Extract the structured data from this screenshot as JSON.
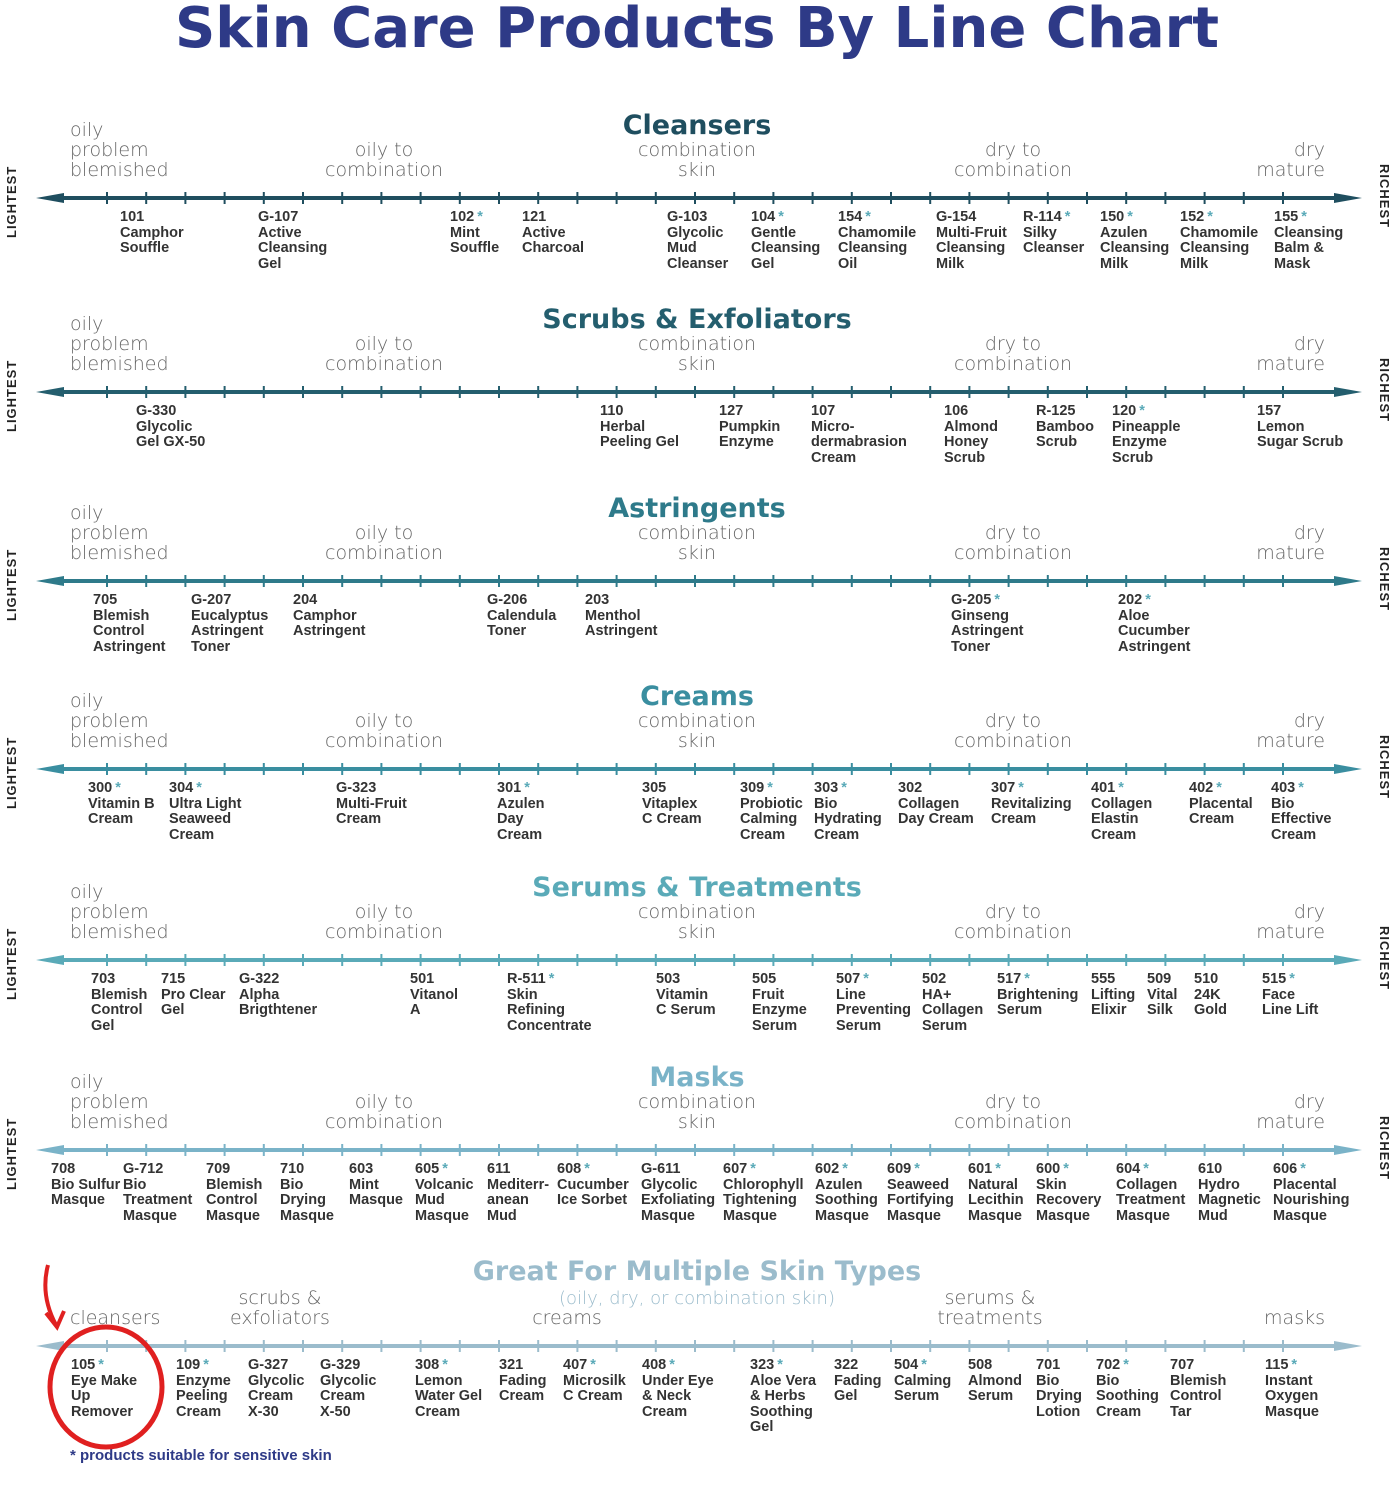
{
  "title": "Skin Care Products By Line Chart",
  "side_left": "LIGHTEST",
  "side_right": "RICHEST",
  "labels": {
    "oily": "oily\nproblem\nblemished",
    "oily_comb": "oily to\ncombination",
    "comb": "combination\nskin",
    "dry_comb": "dry to\ncombination",
    "dry": "dry\nmature"
  },
  "sections": [
    {
      "title": "Cleansers",
      "color": "#1f4e5f",
      "products": [
        {
          "code": "101",
          "star": false,
          "name": "Camphor\nSouffle"
        },
        {
          "code": "G-107",
          "star": false,
          "name": "Active\nCleansing\nGel"
        },
        {
          "code": "102",
          "star": true,
          "name": "Mint\nSouffle"
        },
        {
          "code": "121",
          "star": false,
          "name": "Active\nCharcoal"
        },
        {
          "code": "G-103",
          "star": false,
          "name": "Glycolic\nMud\nCleanser"
        },
        {
          "code": "104",
          "star": true,
          "name": "Gentle\nCleansing\nGel"
        },
        {
          "code": "154",
          "star": true,
          "name": "Chamomile\nCleansing\nOil"
        },
        {
          "code": "G-154",
          "star": false,
          "name": "Multi-Fruit\nCleansing\nMilk"
        },
        {
          "code": "R-114",
          "star": true,
          "name": "Silky\nCleanser"
        },
        {
          "code": "150",
          "star": true,
          "name": "Azulen\nCleansing\nMilk"
        },
        {
          "code": "152",
          "star": true,
          "name": "Chamomile\nCleansing\nMilk"
        },
        {
          "code": "155",
          "star": true,
          "name": "Cleansing\nBalm &\nMask"
        }
      ]
    },
    {
      "title": "Scrubs & Exfoliators",
      "color": "#245e6e",
      "products": [
        {
          "code": "G-330",
          "star": false,
          "name": "Glycolic\nGel GX-50"
        },
        {
          "code": "110",
          "star": false,
          "name": "Herbal\nPeeling Gel"
        },
        {
          "code": "127",
          "star": false,
          "name": "Pumpkin\nEnzyme"
        },
        {
          "code": "107",
          "star": false,
          "name": "Micro-\ndermabrasion\nCream"
        },
        {
          "code": "106",
          "star": false,
          "name": "Almond\nHoney\nScrub"
        },
        {
          "code": "R-125",
          "star": false,
          "name": "Bamboo\nScrub"
        },
        {
          "code": "120",
          "star": true,
          "name": "Pineapple\nEnzyme\nScrub"
        },
        {
          "code": "157",
          "star": false,
          "name": "Lemon\nSugar Scrub"
        }
      ]
    },
    {
      "title": "Astringents",
      "color": "#2e7a8a",
      "products": [
        {
          "code": "705",
          "star": false,
          "name": "Blemish\nControl\nAstringent"
        },
        {
          "code": "G-207",
          "star": false,
          "name": "Eucalyptus\nAstringent\nToner"
        },
        {
          "code": "204",
          "star": false,
          "name": "Camphor\nAstringent"
        },
        {
          "code": "G-206",
          "star": false,
          "name": "Calendula\nToner"
        },
        {
          "code": "203",
          "star": false,
          "name": "Menthol\nAstringent"
        },
        {
          "code": "G-205",
          "star": true,
          "name": "Ginseng\nAstringent\nToner"
        },
        {
          "code": "202",
          "star": true,
          "name": "Aloe\nCucumber\nAstringent"
        }
      ]
    },
    {
      "title": "Creams",
      "color": "#3a8ea0",
      "products": [
        {
          "code": "300",
          "star": true,
          "name": "Vitamin B\nCream"
        },
        {
          "code": "304",
          "star": true,
          "name": "Ultra Light\nSeaweed\nCream"
        },
        {
          "code": "G-323",
          "star": false,
          "name": "Multi-Fruit\nCream"
        },
        {
          "code": "301",
          "star": true,
          "name": "Azulen\nDay\nCream"
        },
        {
          "code": "305",
          "star": false,
          "name": "Vitaplex\nC Cream"
        },
        {
          "code": "309",
          "star": true,
          "name": "Probiotic\nCalming\nCream"
        },
        {
          "code": "303",
          "star": true,
          "name": "Bio\nHydrating\nCream"
        },
        {
          "code": "302",
          "star": false,
          "name": "Collagen\nDay Cream"
        },
        {
          "code": "307",
          "star": true,
          "name": "Revitalizing\nCream"
        },
        {
          "code": "401",
          "star": true,
          "name": "Collagen\nElastin\nCream"
        },
        {
          "code": "402",
          "star": true,
          "name": "Placental\nCream"
        },
        {
          "code": "403",
          "star": true,
          "name": "Bio\nEffective\nCream"
        }
      ]
    },
    {
      "title": "Serums & Treatments",
      "color": "#5aaab8",
      "products": [
        {
          "code": "703",
          "star": false,
          "name": "Blemish\nControl\nGel"
        },
        {
          "code": "715",
          "star": false,
          "name": "Pro Clear\nGel"
        },
        {
          "code": "G-322",
          "star": false,
          "name": "Alpha\nBrigthtener"
        },
        {
          "code": "501",
          "star": false,
          "name": "Vitanol\nA"
        },
        {
          "code": "R-511",
          "star": true,
          "name": "Skin\nRefining\nConcentrate"
        },
        {
          "code": "503",
          "star": false,
          "name": "Vitamin\nC Serum"
        },
        {
          "code": "505",
          "star": false,
          "name": "Fruit\nEnzyme\nSerum"
        },
        {
          "code": "507",
          "star": true,
          "name": "Line\nPreventing\nSerum"
        },
        {
          "code": "502",
          "star": false,
          "name": "HA+\nCollagen\nSerum"
        },
        {
          "code": "517",
          "star": true,
          "name": "Brightening\nSerum"
        },
        {
          "code": "555",
          "star": false,
          "name": "Lifting\nElixir"
        },
        {
          "code": "509",
          "star": false,
          "name": "Vital\nSilk"
        },
        {
          "code": "510",
          "star": false,
          "name": "24K\nGold"
        },
        {
          "code": "515",
          "star": true,
          "name": "Face\nLine Lift"
        }
      ]
    },
    {
      "title": "Masks",
      "color": "#7ab3c8",
      "products": [
        {
          "code": "708",
          "star": false,
          "name": "Bio Sulfur\nMasque"
        },
        {
          "code": "G-712",
          "star": false,
          "name": "Bio\nTreatment\nMasque"
        },
        {
          "code": "709",
          "star": false,
          "name": "Blemish\nControl\nMasque"
        },
        {
          "code": "710",
          "star": false,
          "name": "Bio\nDrying\nMasque"
        },
        {
          "code": "603",
          "star": false,
          "name": "Mint\nMasque"
        },
        {
          "code": "605",
          "star": true,
          "name": "Volcanic\nMud\nMasque"
        },
        {
          "code": "611",
          "star": false,
          "name": "Mediterr-\nanean\nMud"
        },
        {
          "code": "608",
          "star": true,
          "name": "Cucumber\nIce Sorbet"
        },
        {
          "code": "G-611",
          "star": false,
          "name": "Glycolic\nExfoliating\nMasque"
        },
        {
          "code": "607",
          "star": true,
          "name": "Chlorophyll\nTightening\nMasque"
        },
        {
          "code": "602",
          "star": true,
          "name": "Azulen\nSoothing\nMasque"
        },
        {
          "code": "609",
          "star": true,
          "name": "Seaweed\nFortifying\nMasque"
        },
        {
          "code": "601",
          "star": true,
          "name": "Natural\nLecithin\nMasque"
        },
        {
          "code": "600",
          "star": true,
          "name": "Skin\nRecovery\nMasque"
        },
        {
          "code": "604",
          "star": true,
          "name": "Collagen\nTreatment\nMasque"
        },
        {
          "code": "610",
          "star": false,
          "name": "Hydro\nMagnetic\nMud"
        },
        {
          "code": "606",
          "star": true,
          "name": "Placental\nNourishing\nMasque"
        }
      ]
    }
  ],
  "multi": {
    "title": "Great For Multiple Skin Types",
    "subtitle": "(oily, dry, or combination skin)",
    "color": "#9bbccc",
    "labels": {
      "cleansers": "cleansers",
      "scrubs": "scrubs &\nexfoliators",
      "creams": "creams",
      "serums": "serums &\ntreatments",
      "masks": "masks"
    },
    "highlight_color": "#e02020",
    "products": [
      {
        "code": "105",
        "star": true,
        "name": "Eye Make\nUp\nRemover"
      },
      {
        "code": "109",
        "star": true,
        "name": "Enzyme\nPeeling\nCream"
      },
      {
        "code": "G-327",
        "star": false,
        "name": "Glycolic\nCream\nX-30"
      },
      {
        "code": "G-329",
        "star": false,
        "name": "Glycolic\nCream\nX-50"
      },
      {
        "code": "308",
        "star": true,
        "name": "Lemon\nWater Gel\nCream"
      },
      {
        "code": "321",
        "star": false,
        "name": "Fading\nCream"
      },
      {
        "code": "407",
        "star": true,
        "name": "Microsilk\nC Cream"
      },
      {
        "code": "408",
        "star": true,
        "name": "Under Eye\n& Neck\nCream"
      },
      {
        "code": "323",
        "star": true,
        "name": "Aloe Vera\n& Herbs\nSoothing\nGel"
      },
      {
        "code": "322",
        "star": false,
        "name": "Fading\nGel"
      },
      {
        "code": "504",
        "star": true,
        "name": "Calming\nSerum"
      },
      {
        "code": "508",
        "star": false,
        "name": "Almond\nSerum"
      },
      {
        "code": "701",
        "star": false,
        "name": "Bio\nDrying\nLotion"
      },
      {
        "code": "702",
        "star": true,
        "name": "Bio\nSoothing\nCream"
      },
      {
        "code": "707",
        "star": false,
        "name": "Blemish\nControl\nTar"
      },
      {
        "code": "115",
        "star": true,
        "name": "Instant\nOxygen\nMasque"
      }
    ]
  },
  "footnote": "* products suitable for sensitive skin",
  "title_color": "#2e3a87"
}
